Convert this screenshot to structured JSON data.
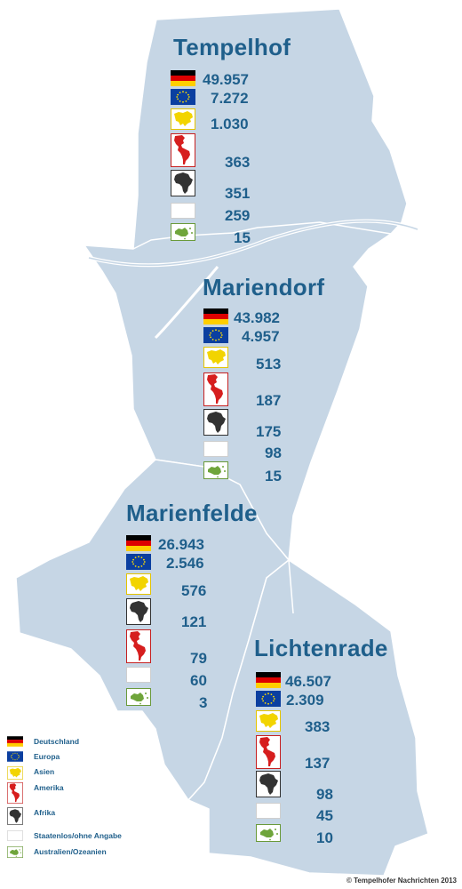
{
  "colors": {
    "district_fill": "#c6d6e5",
    "district_stroke": "#ffffff",
    "text": "#1f5f8b"
  },
  "districts": {
    "tempelhof": {
      "name": "Tempelhof",
      "values": {
        "deutschland": "49.957",
        "europa": "7.272",
        "asien": "1.030",
        "amerika": "363",
        "afrika": "351",
        "staatenlos": "259",
        "australien": "15"
      }
    },
    "mariendorf": {
      "name": "Mariendorf",
      "values": {
        "deutschland": "43.982",
        "europa": "4.957",
        "asien": "513",
        "amerika": "187",
        "afrika": "175",
        "staatenlos": "98",
        "australien": "15"
      }
    },
    "marienfelde": {
      "name": "Marienfelde",
      "values": {
        "deutschland": "26.943",
        "europa": "2.546",
        "asien": "576",
        "afrika": "121",
        "amerika": "79",
        "staatenlos": "60",
        "australien": "3"
      }
    },
    "lichtenrade": {
      "name": "Lichtenrade",
      "values": {
        "deutschland": "46.507",
        "europa": "2.309",
        "asien": "383",
        "amerika": "137",
        "afrika": "98",
        "staatenlos": "45",
        "australien": "10"
      }
    }
  },
  "legend": {
    "deutschland": "Deutschland",
    "europa": "Europa",
    "asien": "Asien",
    "amerika": "Amerika",
    "afrika": "Afrika",
    "staatenlos": "Staatenlos/ohne Angabe",
    "australien": "Australien/Ozeanien"
  },
  "icons": {
    "deutschland": "german-flag-icon",
    "europa": "eu-flag-icon",
    "asien": "asia-map-icon",
    "amerika": "america-map-icon",
    "afrika": "africa-map-icon",
    "staatenlos": "blank-box-icon",
    "australien": "australia-map-icon"
  },
  "copyright": "© Tempelhofer Nachrichten 2013"
}
